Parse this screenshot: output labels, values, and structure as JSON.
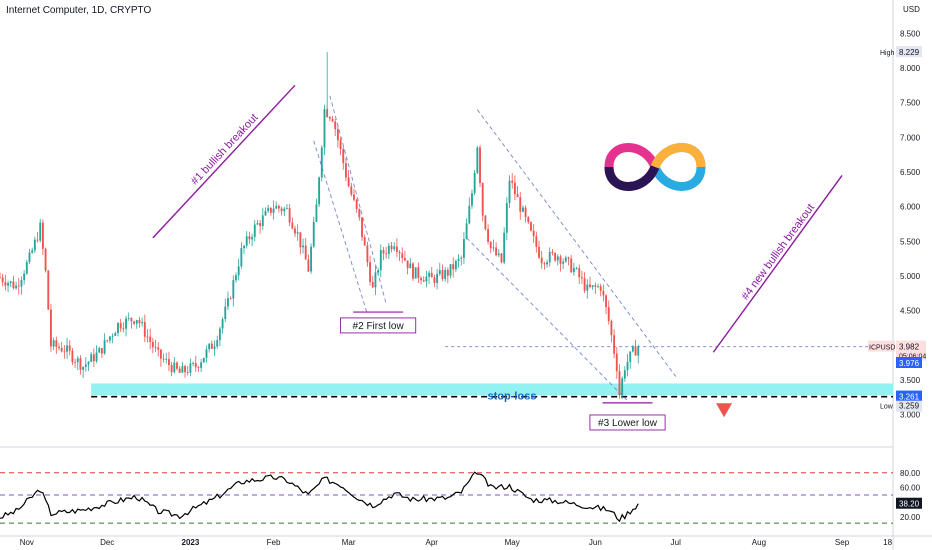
{
  "header": {
    "title": "Internet Computer, 1D, CRYPTO"
  },
  "chart_data": {
    "type": "candlestick",
    "currency_label": "USD",
    "symbol": "ICPUSD",
    "y_axis": {
      "ylim": [
        2.75,
        8.75
      ],
      "scale": "linear",
      "ticks": [
        "8.500",
        "8.000",
        "7.500",
        "7.000",
        "6.500",
        "6.000",
        "5.500",
        "5.000",
        "4.500",
        "3.500",
        "3.000"
      ]
    },
    "x_axis": {
      "start": "2022-10-22",
      "end": "2023-09-20",
      "ticks": [
        {
          "label": "Nov",
          "date": "2022-11-01"
        },
        {
          "label": "Dec",
          "date": "2022-12-01"
        },
        {
          "label": "2023",
          "date": "2023-01-01"
        },
        {
          "label": "Feb",
          "date": "2023-02-01"
        },
        {
          "label": "Mar",
          "date": "2023-03-01"
        },
        {
          "label": "Apr",
          "date": "2023-04-01"
        },
        {
          "label": "May",
          "date": "2023-05-01"
        },
        {
          "label": "Jun",
          "date": "2023-06-01"
        },
        {
          "label": "Jul",
          "date": "2023-07-01"
        },
        {
          "label": "Aug",
          "date": "2023-08-01"
        },
        {
          "label": "Sep",
          "date": "2023-09-01"
        },
        {
          "label": "18",
          "date": "2023-09-18"
        }
      ]
    },
    "price_keypoints": [
      {
        "date": "2022-10-22",
        "close": 4.98
      },
      {
        "date": "2022-10-28",
        "close": 4.85
      },
      {
        "date": "2022-11-02",
        "close": 5.25
      },
      {
        "date": "2022-11-06",
        "close": 5.7
      },
      {
        "date": "2022-11-08",
        "close": 5.05
      },
      {
        "date": "2022-11-10",
        "close": 4.0
      },
      {
        "date": "2022-11-15",
        "close": 3.95
      },
      {
        "date": "2022-11-22",
        "close": 3.7
      },
      {
        "date": "2022-11-28",
        "close": 3.9
      },
      {
        "date": "2022-12-05",
        "close": 4.3
      },
      {
        "date": "2022-12-12",
        "close": 4.4
      },
      {
        "date": "2022-12-20",
        "close": 3.85
      },
      {
        "date": "2022-12-28",
        "close": 3.6
      },
      {
        "date": "2023-01-03",
        "close": 3.7
      },
      {
        "date": "2023-01-10",
        "close": 4.05
      },
      {
        "date": "2023-01-15",
        "close": 4.6
      },
      {
        "date": "2023-01-20",
        "close": 5.35
      },
      {
        "date": "2023-01-25",
        "close": 5.7
      },
      {
        "date": "2023-02-01",
        "close": 6.0
      },
      {
        "date": "2023-02-06",
        "close": 5.95
      },
      {
        "date": "2023-02-10",
        "close": 5.6
      },
      {
        "date": "2023-02-14",
        "close": 5.1
      },
      {
        "date": "2023-02-17",
        "close": 6.0
      },
      {
        "date": "2023-02-20",
        "close": 7.4
      },
      {
        "date": "2023-02-23",
        "close": 7.3
      },
      {
        "date": "2023-02-26",
        "close": 6.8
      },
      {
        "date": "2023-03-01",
        "close": 6.3
      },
      {
        "date": "2023-03-05",
        "close": 5.8
      },
      {
        "date": "2023-03-10",
        "close": 4.8
      },
      {
        "date": "2023-03-13",
        "close": 5.3
      },
      {
        "date": "2023-03-18",
        "close": 5.5
      },
      {
        "date": "2023-03-25",
        "close": 5.05
      },
      {
        "date": "2023-04-01",
        "close": 4.95
      },
      {
        "date": "2023-04-07",
        "close": 5.05
      },
      {
        "date": "2023-04-12",
        "close": 5.25
      },
      {
        "date": "2023-04-16",
        "close": 6.2
      },
      {
        "date": "2023-04-18",
        "close": 6.9
      },
      {
        "date": "2023-04-20",
        "close": 5.9
      },
      {
        "date": "2023-04-23",
        "close": 5.4
      },
      {
        "date": "2023-04-27",
        "close": 5.2
      },
      {
        "date": "2023-04-30",
        "close": 6.4
      },
      {
        "date": "2023-05-04",
        "close": 6.0
      },
      {
        "date": "2023-05-08",
        "close": 5.6
      },
      {
        "date": "2023-05-12",
        "close": 5.25
      },
      {
        "date": "2023-05-18",
        "close": 5.3
      },
      {
        "date": "2023-05-24",
        "close": 5.1
      },
      {
        "date": "2023-05-29",
        "close": 4.8
      },
      {
        "date": "2023-06-03",
        "close": 4.85
      },
      {
        "date": "2023-06-06",
        "close": 4.35
      },
      {
        "date": "2023-06-09",
        "close": 3.7
      },
      {
        "date": "2023-06-10",
        "close": 3.3
      },
      {
        "date": "2023-06-12",
        "close": 3.7
      },
      {
        "date": "2023-06-15",
        "close": 3.9
      },
      {
        "date": "2023-06-17",
        "close": 3.98
      }
    ],
    "price_labels": [
      {
        "name": "High",
        "value": "8.229",
        "numeric": 8.229
      },
      {
        "name": "ICPUSD",
        "value": "3.982",
        "numeric": 3.982,
        "extra": "05:06:04"
      },
      {
        "name": "",
        "value": "3.976",
        "numeric": 3.976
      },
      {
        "name": "",
        "value": "3.261",
        "numeric": 3.261
      },
      {
        "name": "Low",
        "value": "3.259",
        "numeric": 3.259
      }
    ],
    "support_zone": {
      "from": 3.28,
      "to": 3.45,
      "start_date": "2022-11-25",
      "end_date": "2023-09-20",
      "color": "#7ff0f0"
    },
    "stop_loss": {
      "value": 3.26,
      "label": "stop-loss",
      "start_date": "2022-11-25",
      "end_date": "2023-09-20"
    },
    "current_price_line": {
      "value": 3.98,
      "start_date": "2023-04-06",
      "end_date": "2023-09-20"
    },
    "annotations": [
      {
        "text": "#1 bullish breakout",
        "color": "#8b1a9e",
        "from": {
          "date": "2022-12-18",
          "value": 5.55
        },
        "to": {
          "date": "2023-02-09",
          "value": 7.75
        }
      },
      {
        "text": "#4 new bullish breakout",
        "color": "#8b1a9e",
        "from": {
          "date": "2023-07-15",
          "value": 3.9
        },
        "to": {
          "date": "2023-09-01",
          "value": 6.45
        }
      }
    ],
    "labels": [
      {
        "text": "#2 First low",
        "date": "2023-03-12",
        "value": 4.28,
        "underline_value": 4.48
      },
      {
        "text": "#3 Lower low",
        "date": "2023-06-13",
        "value": 2.88,
        "underline_value": 3.17
      }
    ],
    "channels": [
      {
        "a": {
          "date": "2023-02-22",
          "value": 7.6
        },
        "b": {
          "date": "2023-03-15",
          "value": 4.6
        }
      },
      {
        "a": {
          "date": "2023-02-16",
          "value": 6.95
        },
        "b": {
          "date": "2023-03-08",
          "value": 4.45
        }
      },
      {
        "a": {
          "date": "2023-04-18",
          "value": 7.4
        },
        "b": {
          "date": "2023-07-01",
          "value": 3.55
        }
      },
      {
        "a": {
          "date": "2023-04-14",
          "value": 5.55
        },
        "b": {
          "date": "2023-06-13",
          "value": 3.2
        }
      }
    ],
    "down_marker": {
      "date": "2023-07-19",
      "value": 3.05,
      "color": "#ef5350"
    },
    "logo": {
      "colors": [
        "#e5328e",
        "#2a1454",
        "#fbb03b",
        "#29abe2"
      ]
    },
    "rsi": {
      "range": [
        0,
        100
      ],
      "ticks": [
        "80.00",
        "60.00",
        "20.00"
      ],
      "lines": [
        {
          "value": 80,
          "color": "#e53935"
        },
        {
          "value": 50,
          "color": "#7e57c2"
        },
        {
          "value": 12,
          "color": "#2e7d32"
        }
      ],
      "current": "38.20",
      "current_value": 38.2,
      "keypoints": [
        {
          "date": "2022-10-22",
          "value": 20
        },
        {
          "date": "2022-10-28",
          "value": 28
        },
        {
          "date": "2022-11-06",
          "value": 58
        },
        {
          "date": "2022-11-10",
          "value": 25
        },
        {
          "date": "2022-11-22",
          "value": 30
        },
        {
          "date": "2022-12-05",
          "value": 42
        },
        {
          "date": "2022-12-12",
          "value": 48
        },
        {
          "date": "2022-12-20",
          "value": 28
        },
        {
          "date": "2022-12-28",
          "value": 22
        },
        {
          "date": "2023-01-10",
          "value": 45
        },
        {
          "date": "2023-01-20",
          "value": 68
        },
        {
          "date": "2023-02-01",
          "value": 74
        },
        {
          "date": "2023-02-06",
          "value": 70
        },
        {
          "date": "2023-02-14",
          "value": 50
        },
        {
          "date": "2023-02-20",
          "value": 72
        },
        {
          "date": "2023-02-26",
          "value": 64
        },
        {
          "date": "2023-03-05",
          "value": 45
        },
        {
          "date": "2023-03-10",
          "value": 36
        },
        {
          "date": "2023-03-18",
          "value": 52
        },
        {
          "date": "2023-03-25",
          "value": 44
        },
        {
          "date": "2023-04-07",
          "value": 46
        },
        {
          "date": "2023-04-12",
          "value": 54
        },
        {
          "date": "2023-04-18",
          "value": 82
        },
        {
          "date": "2023-04-23",
          "value": 60
        },
        {
          "date": "2023-04-30",
          "value": 62
        },
        {
          "date": "2023-05-08",
          "value": 44
        },
        {
          "date": "2023-05-18",
          "value": 42
        },
        {
          "date": "2023-05-29",
          "value": 35
        },
        {
          "date": "2023-06-06",
          "value": 30
        },
        {
          "date": "2023-06-10",
          "value": 18
        },
        {
          "date": "2023-06-12",
          "value": 22
        },
        {
          "date": "2023-06-17",
          "value": 38.2
        }
      ]
    }
  }
}
